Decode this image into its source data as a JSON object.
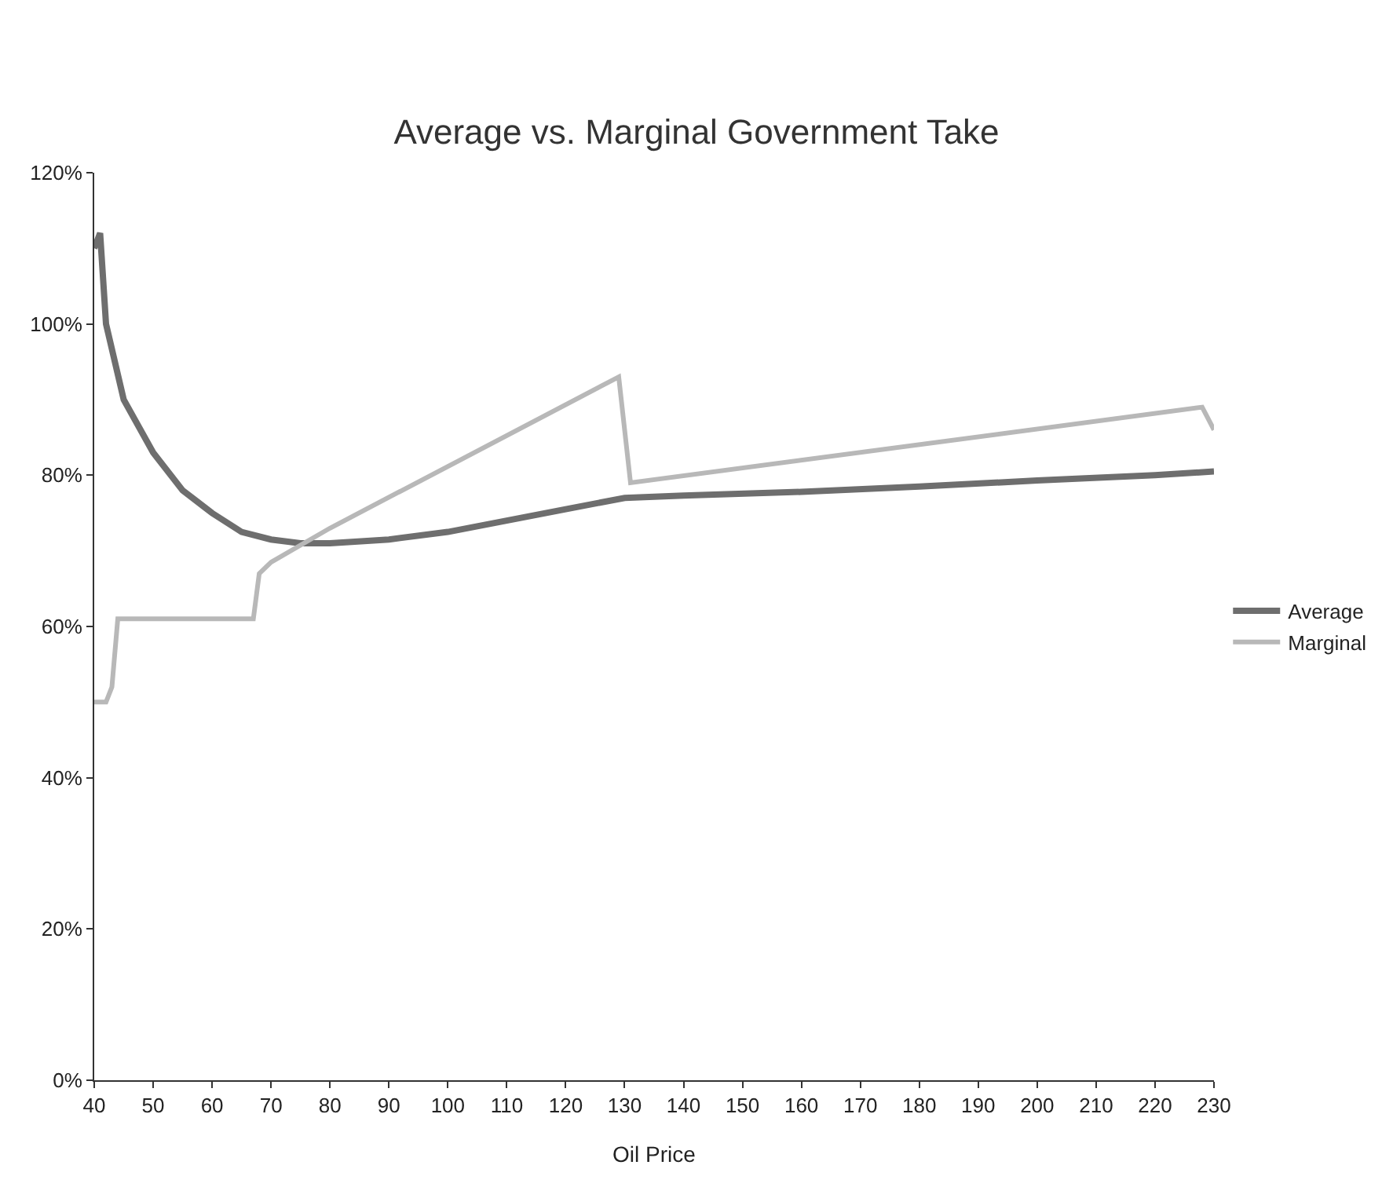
{
  "chart_data": {
    "type": "line",
    "title": "Average vs. Marginal Government Take",
    "xlabel": "Oil Price",
    "xlim": [
      40,
      230
    ],
    "xticks": [
      40,
      50,
      60,
      70,
      80,
      90,
      100,
      110,
      120,
      130,
      140,
      150,
      160,
      170,
      180,
      190,
      200,
      210,
      220,
      230
    ],
    "ylim": [
      0,
      120
    ],
    "yticks": [
      {
        "value": 0,
        "label": "0%"
      },
      {
        "value": 20,
        "label": "20%"
      },
      {
        "value": 40,
        "label": "40%"
      },
      {
        "value": 60,
        "label": "60%"
      },
      {
        "value": 80,
        "label": "80%"
      },
      {
        "value": 100,
        "label": "100%"
      },
      {
        "value": 120,
        "label": "120%"
      }
    ],
    "grid": false,
    "legend": "right",
    "marker": "none",
    "line_style": "solid",
    "series": [
      {
        "name": "Average",
        "color": "#6e6e6e",
        "x": [
          40,
          41,
          42,
          45,
          50,
          55,
          60,
          65,
          70,
          75,
          80,
          90,
          100,
          110,
          120,
          130,
          140,
          160,
          180,
          200,
          220,
          230
        ],
        "values": [
          110,
          112,
          100,
          90,
          83,
          78,
          75,
          72.5,
          71.5,
          71,
          71,
          71.5,
          72.5,
          74,
          75.5,
          77,
          77.3,
          77.8,
          78.5,
          79.3,
          80,
          80.5
        ]
      },
      {
        "name": "Marginal",
        "color": "#b8b8b8",
        "x": [
          40,
          42,
          43,
          44,
          67,
          68,
          70,
          80,
          129,
          131,
          228,
          230
        ],
        "values": [
          50,
          50,
          52,
          61,
          61,
          67,
          68.5,
          73,
          93,
          79,
          89,
          86
        ]
      }
    ]
  }
}
